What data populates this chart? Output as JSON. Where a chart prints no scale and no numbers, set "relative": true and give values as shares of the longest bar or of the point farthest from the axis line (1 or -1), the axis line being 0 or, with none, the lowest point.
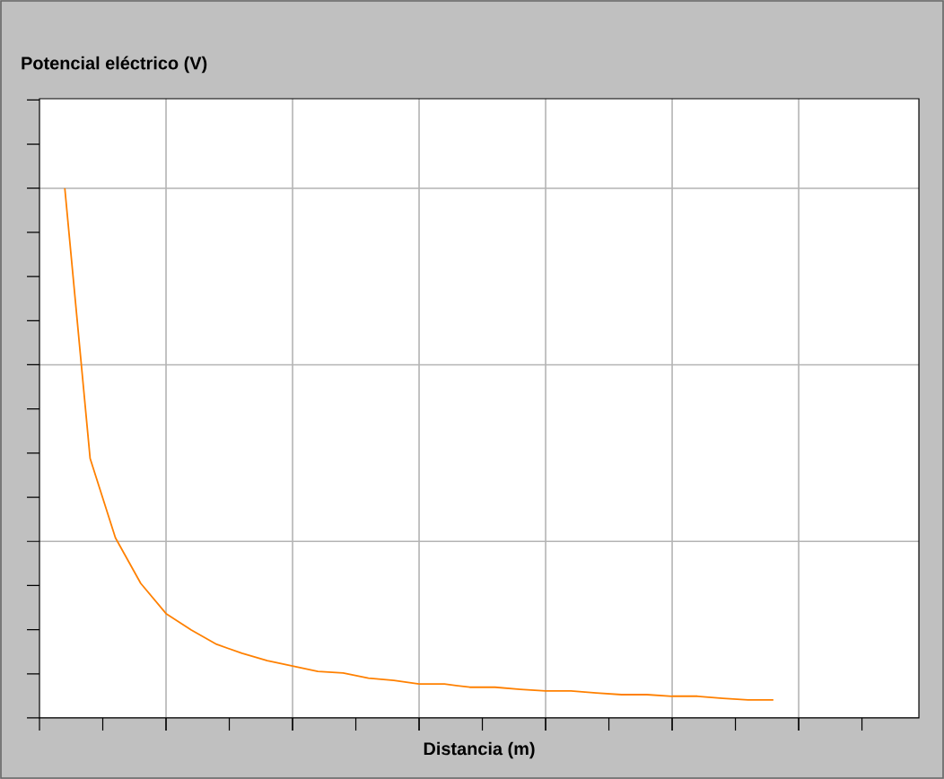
{
  "chart_data": {
    "type": "line",
    "title": "**Potencial eléctrico (V)**",
    "xlabel": "**Distancia (m)**",
    "relative": true,
    "grid": true,
    "categories": [
      null,
      null,
      null,
      null,
      null,
      null,
      null,
      null,
      null,
      null,
      null,
      null,
      null,
      null,
      null,
      null,
      null,
      null,
      null,
      null,
      null,
      null,
      null,
      null,
      null,
      null,
      null,
      null,
      null
    ],
    "series": [
      {
        "color": "#ff8000",
        "values": [
          1.0,
          0.49,
          0.34,
          0.254,
          0.197,
          0.166,
          0.139,
          0.122,
          0.108,
          0.098,
          0.088,
          0.085,
          0.075,
          0.071,
          0.064,
          0.064,
          0.058,
          0.058,
          0.054,
          0.051,
          0.051,
          0.047,
          0.044,
          0.044,
          0.041,
          0.041,
          0.037,
          0.034,
          0.034
        ]
      }
    ]
  }
}
